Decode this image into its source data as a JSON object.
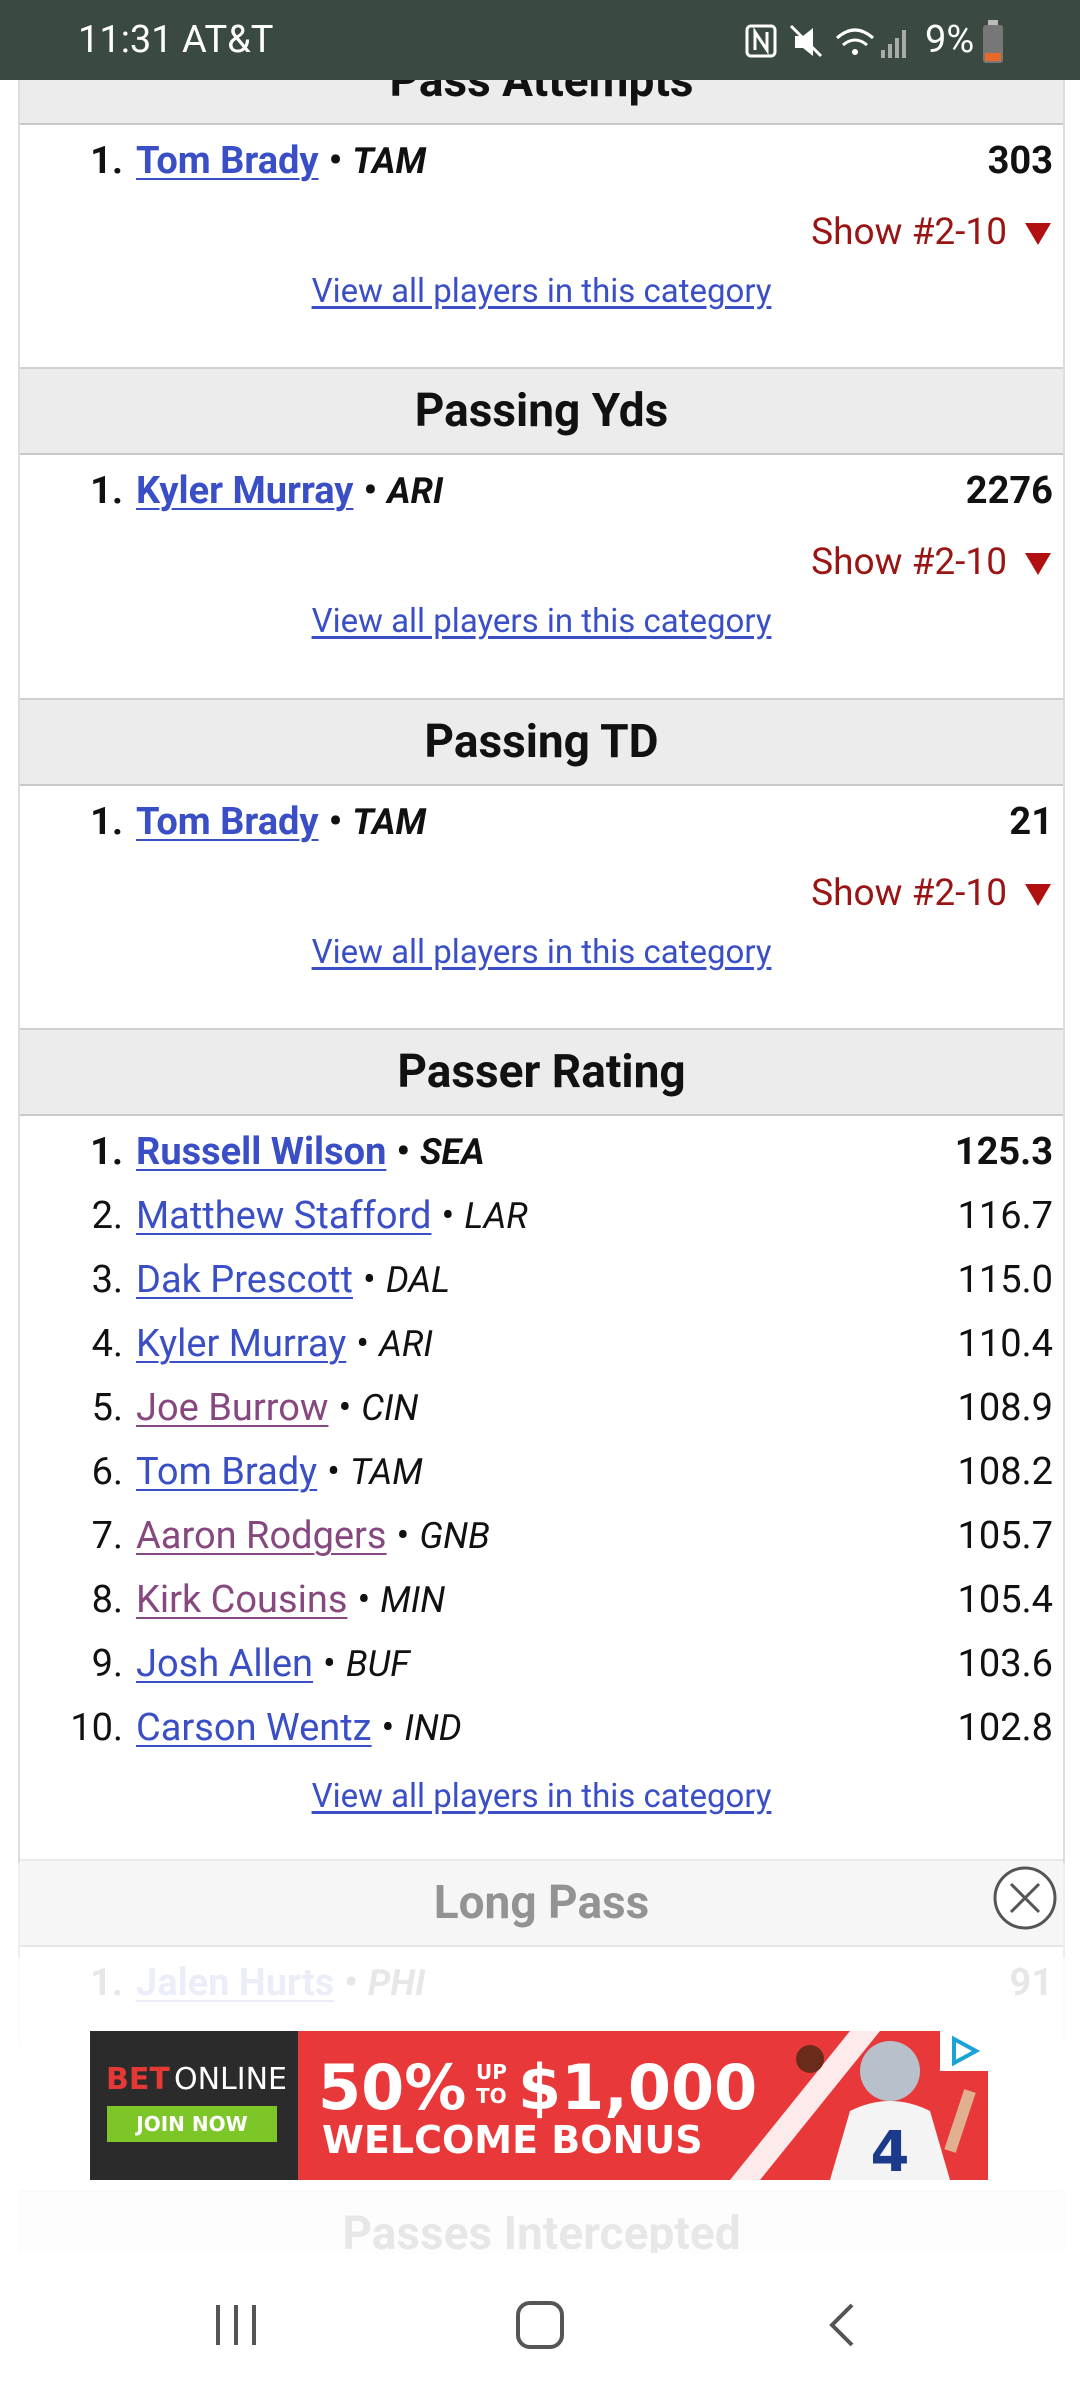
{
  "status_bar": {
    "time_carrier": "11:31 AT&T",
    "battery": "9%"
  },
  "separator": "•",
  "sections": [
    {
      "title": "Pass Attempts",
      "leaders": [
        {
          "rank": "1.",
          "name": "Tom Brady",
          "team": "TAM",
          "value": "303"
        }
      ],
      "show": "Show #2-10",
      "view_all": "View all players in this category"
    },
    {
      "title": "Passing Yds",
      "leaders": [
        {
          "rank": "1.",
          "name": "Kyler Murray",
          "team": "ARI",
          "value": "2276"
        }
      ],
      "show": "Show #2-10",
      "view_all": "View all players in this category"
    },
    {
      "title": "Passing TD",
      "leaders": [
        {
          "rank": "1.",
          "name": "Tom Brady",
          "team": "TAM",
          "value": "21"
        }
      ],
      "show": "Show #2-10",
      "view_all": "View all players in this category"
    },
    {
      "title": "Passer Rating",
      "leaders": [
        {
          "rank": "1.",
          "name": "Russell Wilson",
          "team": "SEA",
          "value": "125.3"
        },
        {
          "rank": "2.",
          "name": "Matthew Stafford",
          "team": "LAR",
          "value": "116.7"
        },
        {
          "rank": "3.",
          "name": "Dak Prescott",
          "team": "DAL",
          "value": "115.0"
        },
        {
          "rank": "4.",
          "name": "Kyler Murray",
          "team": "ARI",
          "value": "110.4"
        },
        {
          "rank": "5.",
          "name": "Joe Burrow",
          "team": "CIN",
          "value": "108.9",
          "visited": true
        },
        {
          "rank": "6.",
          "name": "Tom Brady",
          "team": "TAM",
          "value": "108.2"
        },
        {
          "rank": "7.",
          "name": "Aaron Rodgers",
          "team": "GNB",
          "value": "105.7",
          "visited": true
        },
        {
          "rank": "8.",
          "name": "Kirk Cousins",
          "team": "MIN",
          "value": "105.4",
          "visited": true
        },
        {
          "rank": "9.",
          "name": "Josh Allen",
          "team": "BUF",
          "value": "103.6"
        },
        {
          "rank": "10.",
          "name": "Carson Wentz",
          "team": "IND",
          "value": "102.8"
        }
      ],
      "view_all": "View all players in this category"
    },
    {
      "title": "Long Pass",
      "leaders": [
        {
          "rank": "1.",
          "name": "Jalen Hurts",
          "team": "PHI",
          "value": "91"
        }
      ]
    },
    {
      "title": "Passes Intercepted",
      "leaders": []
    }
  ],
  "ad": {
    "brand_a": "BET",
    "brand_b": "ONLINE",
    "button": "JOIN NOW",
    "percent": "50%",
    "up": "UP",
    "to": "TO",
    "amount": "$1,000",
    "bonus": "WELCOME BONUS"
  }
}
